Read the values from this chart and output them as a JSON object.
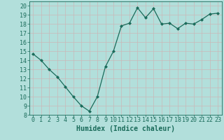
{
  "x": [
    0,
    1,
    2,
    3,
    4,
    5,
    6,
    7,
    8,
    9,
    10,
    11,
    12,
    13,
    14,
    15,
    16,
    17,
    18,
    19,
    20,
    21,
    22,
    23
  ],
  "y": [
    14.7,
    14.0,
    13.0,
    12.2,
    11.1,
    10.0,
    9.0,
    8.4,
    10.0,
    13.3,
    15.0,
    17.8,
    18.1,
    19.8,
    18.7,
    19.7,
    18.0,
    18.1,
    17.5,
    18.1,
    18.0,
    18.5,
    19.1,
    19.2
  ],
  "xlabel": "Humidex (Indice chaleur)",
  "ylabel": "",
  "xlim": [
    -0.5,
    23.5
  ],
  "ylim": [
    8,
    20.5
  ],
  "yticks": [
    8,
    9,
    10,
    11,
    12,
    13,
    14,
    15,
    16,
    17,
    18,
    19,
    20
  ],
  "xticks": [
    0,
    1,
    2,
    3,
    4,
    5,
    6,
    7,
    8,
    9,
    10,
    11,
    12,
    13,
    14,
    15,
    16,
    17,
    18,
    19,
    20,
    21,
    22,
    23
  ],
  "line_color": "#1a6b5a",
  "bg_color": "#b2dfdb",
  "grid_color": "#c9b8b8",
  "label_color": "#1a6b5a",
  "xlabel_fontsize": 7,
  "tick_fontsize": 6
}
